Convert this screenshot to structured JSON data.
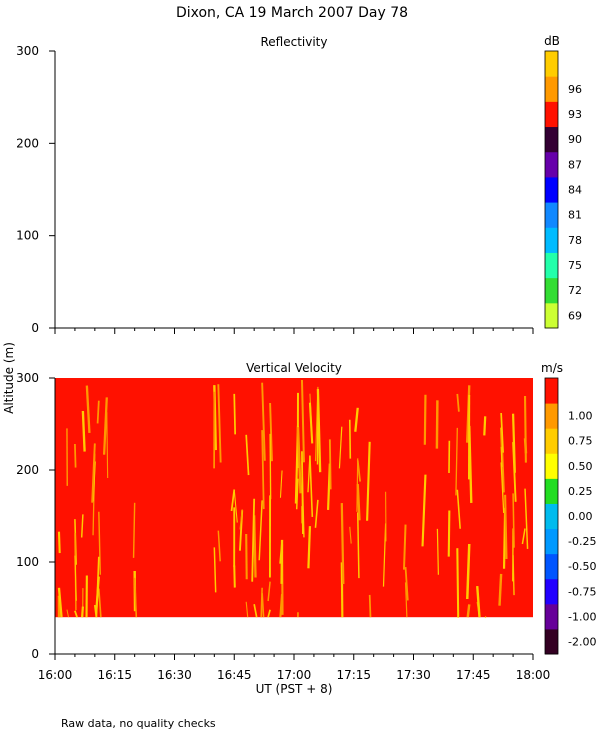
{
  "title": "Dixon, CA 19 March 2007  Day  78",
  "footnote": "Raw data, no quality checks",
  "shared_ylabel": "Altitude (m)",
  "chart_data": [
    {
      "type": "heatmap",
      "title": "Reflectivity",
      "ylim": [
        0,
        300
      ],
      "yticks": [
        0,
        100,
        200,
        300
      ],
      "xlim": [
        "16:00",
        "18:00"
      ],
      "colorbar": {
        "unit": "dB",
        "labels": [
          "69",
          "72",
          "75",
          "78",
          "81",
          "84",
          "87",
          "90",
          "93",
          "96"
        ],
        "colors": [
          "#ccff33",
          "#33dd33",
          "#22ffaa",
          "#00bbff",
          "#1188ff",
          "#0000ff",
          "#6600aa",
          "#330033",
          "#ff1100",
          "#ff9900",
          "#ffcc00"
        ]
      },
      "data_present": false
    },
    {
      "type": "heatmap",
      "title": "Vertical Velocity",
      "ylim": [
        0,
        300
      ],
      "yticks": [
        0,
        100,
        200,
        300
      ],
      "xlim": [
        "16:00",
        "18:00"
      ],
      "xticks": [
        "16:00",
        "16:15",
        "16:30",
        "16:45",
        "17:00",
        "17:15",
        "17:30",
        "17:45",
        "18:00"
      ],
      "xlabel": "UT  (PST + 8)",
      "data_altitude_range": [
        40,
        300
      ],
      "dominant_value": 1.0,
      "colorbar": {
        "unit": "m/s",
        "labels": [
          "-2.00",
          "-1.00",
          "-0.75",
          "-0.50",
          "-0.25",
          "0.00",
          "0.25",
          "0.50",
          "0.75",
          "1.00"
        ],
        "colors": [
          "#330022",
          "#660099",
          "#2200ff",
          "#0055ff",
          "#0099ff",
          "#00bbee",
          "#22dd22",
          "#ffff00",
          "#ffcc00",
          "#ff9900",
          "#ff1100"
        ]
      },
      "streak_times": [
        "16:01",
        "16:03",
        "16:05",
        "16:07",
        "16:08",
        "16:10",
        "16:11",
        "16:13",
        "16:20",
        "16:40",
        "16:41",
        "16:45",
        "16:47",
        "16:48",
        "16:50",
        "16:52",
        "16:54",
        "16:57",
        "17:01",
        "17:02",
        "17:04",
        "17:06",
        "17:09",
        "17:12",
        "17:14",
        "17:16",
        "17:19",
        "17:23",
        "17:28",
        "17:33",
        "17:36",
        "17:39",
        "17:41",
        "17:44",
        "17:46",
        "17:48",
        "17:52",
        "17:53",
        "17:55",
        "17:58"
      ]
    }
  ]
}
